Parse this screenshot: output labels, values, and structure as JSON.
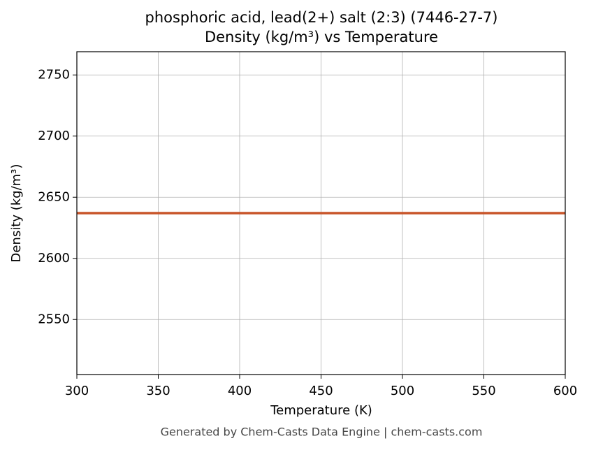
{
  "chart_data": {
    "type": "line",
    "title": "phosphoric acid, lead(2+) salt (2:3) (7446-27-7)",
    "subtitle": "Density (kg/m³) vs Temperature",
    "x_label": "Temperature (K)",
    "y_label": "Density (kg/m³)",
    "x": [
      300,
      600
    ],
    "series": [
      {
        "name": "Density",
        "color": "#c8552a",
        "values": [
          2637,
          2637
        ]
      }
    ],
    "xlim": [
      300,
      600
    ],
    "xticks": [
      300,
      350,
      400,
      450,
      500,
      550,
      600
    ],
    "ylim": [
      2505,
      2769
    ],
    "yticks": [
      2550,
      2600,
      2650,
      2700,
      2750
    ],
    "grid": true,
    "footer": "Generated by Chem-Casts Data Engine | chem-casts.com"
  }
}
